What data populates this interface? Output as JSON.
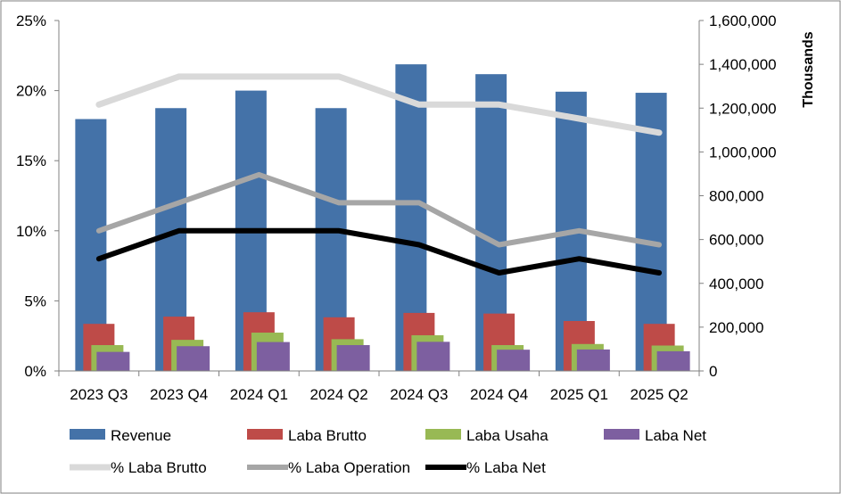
{
  "chart_data": {
    "type": "bar",
    "categories": [
      "2023 Q3",
      "2023 Q4",
      "2024 Q1",
      "2024 Q2",
      "2024 Q3",
      "2024 Q4",
      "2025 Q1",
      "2025 Q2"
    ],
    "series": [
      {
        "name": "Revenue",
        "type": "bar",
        "axis": "right",
        "color": "#4472A8",
        "values": [
          1150000,
          1200000,
          1280000,
          1200000,
          1400000,
          1355000,
          1275000,
          1270000
        ]
      },
      {
        "name": "Laba Brutto",
        "type": "bar",
        "axis": "right",
        "color": "#BE4B48",
        "values": [
          215000,
          248000,
          268000,
          245000,
          265000,
          262000,
          228000,
          215000
        ]
      },
      {
        "name": "Laba Usaha",
        "type": "bar",
        "axis": "right",
        "color": "#98B954",
        "values": [
          118000,
          142000,
          175000,
          145000,
          163000,
          118000,
          123000,
          116000
        ]
      },
      {
        "name": "Laba Net",
        "type": "bar",
        "axis": "right",
        "color": "#7D5FA0",
        "values": [
          87000,
          113000,
          132000,
          118000,
          133000,
          97000,
          98000,
          90000
        ]
      },
      {
        "name": "% Laba Brutto",
        "type": "line",
        "axis": "left",
        "color": "#D9D9D9",
        "values": [
          19.0,
          21.0,
          21.0,
          21.0,
          19.0,
          19.0,
          18.0,
          17.0
        ]
      },
      {
        "name": "% Laba Operation",
        "type": "line",
        "axis": "left",
        "color": "#A6A6A6",
        "values": [
          10.0,
          12.0,
          14.0,
          12.0,
          12.0,
          9.0,
          10.0,
          9.0
        ]
      },
      {
        "name": "% Laba Net",
        "type": "line",
        "axis": "left",
        "color": "#000000",
        "values": [
          8.0,
          10.0,
          10.0,
          10.0,
          9.0,
          7.0,
          8.0,
          7.0
        ]
      }
    ],
    "left_axis": {
      "ylim": [
        0,
        25
      ],
      "ticks": [
        "0%",
        "5%",
        "10%",
        "15%",
        "20%",
        "25%"
      ],
      "tick_values": [
        0,
        5,
        10,
        15,
        20,
        25
      ]
    },
    "right_axis": {
      "ylim": [
        0,
        1600000
      ],
      "ticks": [
        "0",
        "200,000",
        "400,000",
        "600,000",
        "800,000",
        "1,000,000",
        "1,200,000",
        "1,400,000",
        "1,600,000"
      ],
      "tick_values": [
        0,
        200000,
        400000,
        600000,
        800000,
        1000000,
        1200000,
        1400000,
        1600000
      ],
      "label": "Thousands"
    },
    "grid": false,
    "legend": "bottom"
  }
}
